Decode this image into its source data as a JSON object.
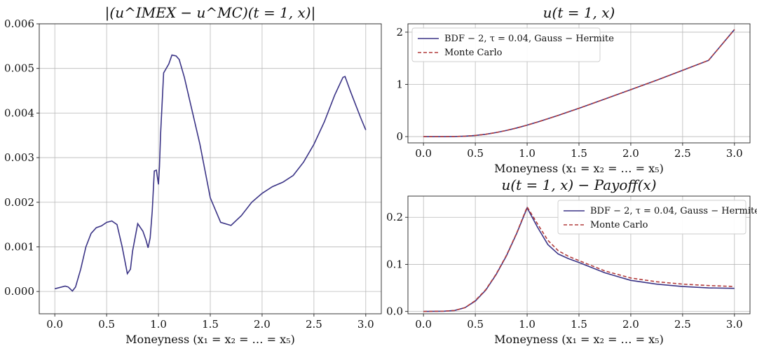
{
  "chart_data": [
    {
      "type": "line",
      "title": "|(u^IMEX − u^MC)(t = 1, x)|",
      "xlabel": "Moneyness (x₁ = x₂ = … = x₅)",
      "ylabel": "",
      "xlim": [
        -0.15,
        3.15
      ],
      "ylim": [
        -0.0005,
        0.006
      ],
      "x_ticks": [
        "0.0",
        "0.5",
        "1.0",
        "1.5",
        "2.0",
        "2.5",
        "3.0"
      ],
      "y_ticks": [
        "0.000",
        "0.001",
        "0.002",
        "0.003",
        "0.004",
        "0.005",
        "0.006"
      ],
      "grid": true,
      "series": [
        {
          "name": "",
          "color": "#3b3486",
          "dash": "",
          "x": [
            0.0,
            0.1,
            0.13,
            0.17,
            0.2,
            0.25,
            0.3,
            0.35,
            0.4,
            0.45,
            0.5,
            0.55,
            0.6,
            0.65,
            0.7,
            0.73,
            0.75,
            0.8,
            0.85,
            0.88,
            0.9,
            0.92,
            0.94,
            0.96,
            0.98,
            1.0,
            1.01,
            1.02,
            1.05,
            1.1,
            1.13,
            1.17,
            1.2,
            1.25,
            1.3,
            1.4,
            1.5,
            1.6,
            1.7,
            1.8,
            1.9,
            2.0,
            2.1,
            2.2,
            2.3,
            2.4,
            2.5,
            2.6,
            2.7,
            2.78,
            2.8,
            2.85,
            2.9,
            2.95,
            3.0
          ],
          "y": [
            6e-05,
            0.00012,
            0.0001,
            1e-05,
            0.0001,
            0.0005,
            0.001,
            0.0013,
            0.00143,
            0.00147,
            0.00155,
            0.00158,
            0.0015,
            0.001,
            0.0004,
            0.0005,
            0.0009,
            0.00152,
            0.00135,
            0.00115,
            0.00098,
            0.0012,
            0.0018,
            0.0027,
            0.00272,
            0.0024,
            0.0028,
            0.0035,
            0.0049,
            0.0051,
            0.0053,
            0.00528,
            0.0052,
            0.0048,
            0.0043,
            0.0033,
            0.0021,
            0.00155,
            0.00148,
            0.0017,
            0.002,
            0.0022,
            0.00235,
            0.00245,
            0.0026,
            0.0029,
            0.0033,
            0.0038,
            0.0044,
            0.0048,
            0.00482,
            0.0045,
            0.0042,
            0.0039,
            0.00362
          ]
        }
      ]
    },
    {
      "type": "line",
      "title": "u(t = 1, x)",
      "xlabel": "Moneyness (x₁ = x₂ = … = x₅)",
      "ylabel": "",
      "xlim": [
        -0.15,
        3.15
      ],
      "ylim": [
        -0.12,
        2.16
      ],
      "x_ticks": [
        "0.0",
        "0.5",
        "1.0",
        "1.5",
        "2.0",
        "2.5",
        "3.0"
      ],
      "y_ticks": [
        "0",
        "1",
        "2"
      ],
      "grid": true,
      "legend": "top-left",
      "series": [
        {
          "name": "BDF − 2, τ = 0.04, Gauss − Hermite",
          "color": "#3b3486",
          "dash": "",
          "x": [
            0.0,
            0.2,
            0.3,
            0.4,
            0.5,
            0.6,
            0.7,
            0.8,
            0.9,
            1.0,
            1.1,
            1.2,
            1.3,
            1.4,
            1.5,
            1.75,
            2.0,
            2.25,
            2.5,
            2.75,
            3.0
          ],
          "y": [
            0.0,
            0.0,
            0.002,
            0.008,
            0.022,
            0.045,
            0.078,
            0.118,
            0.166,
            0.22,
            0.279,
            0.342,
            0.407,
            0.475,
            0.543,
            0.72,
            0.9,
            1.08,
            1.27,
            1.46,
            2.05
          ]
        },
        {
          "name": "Monte Carlo",
          "color": "#b23b3b",
          "dash": "5,3",
          "x": [
            0.0,
            0.2,
            0.3,
            0.4,
            0.5,
            0.6,
            0.7,
            0.8,
            0.9,
            1.0,
            1.1,
            1.2,
            1.3,
            1.4,
            1.5,
            1.75,
            2.0,
            2.25,
            2.5,
            2.75,
            3.0
          ],
          "y": [
            0.0,
            0.0,
            0.002,
            0.008,
            0.022,
            0.045,
            0.078,
            0.118,
            0.166,
            0.22,
            0.279,
            0.342,
            0.407,
            0.475,
            0.543,
            0.72,
            0.9,
            1.08,
            1.27,
            1.46,
            2.05
          ]
        }
      ]
    },
    {
      "type": "line",
      "title": "u(t = 1, x) − Payoff(x)",
      "xlabel": "Moneyness (x₁ = x₂ = … = x₅)",
      "ylabel": "",
      "xlim": [
        -0.15,
        3.15
      ],
      "ylim": [
        -0.005,
        0.245
      ],
      "x_ticks": [
        "0.0",
        "0.5",
        "1.0",
        "1.5",
        "2.0",
        "2.5",
        "3.0"
      ],
      "y_ticks": [
        "0.0",
        "0.1",
        "0.2"
      ],
      "grid": true,
      "legend": "top-right",
      "series": [
        {
          "name": "BDF − 2, τ = 0.04, Gauss − Hermite",
          "color": "#3b3486",
          "dash": "",
          "x": [
            0.0,
            0.2,
            0.3,
            0.4,
            0.5,
            0.6,
            0.7,
            0.8,
            0.9,
            1.0,
            1.1,
            1.2,
            1.3,
            1.4,
            1.5,
            1.75,
            2.0,
            2.25,
            2.5,
            2.75,
            3.0
          ],
          "y": [
            0.0,
            0.0005,
            0.002,
            0.008,
            0.022,
            0.045,
            0.078,
            0.118,
            0.166,
            0.22,
            0.179,
            0.142,
            0.122,
            0.112,
            0.104,
            0.082,
            0.066,
            0.058,
            0.053,
            0.05,
            0.049
          ]
        },
        {
          "name": "Monte Carlo",
          "color": "#b23b3b",
          "dash": "5,3",
          "x": [
            0.0,
            0.2,
            0.3,
            0.4,
            0.5,
            0.6,
            0.7,
            0.8,
            0.9,
            1.0,
            1.1,
            1.2,
            1.3,
            1.4,
            1.5,
            1.75,
            2.0,
            2.25,
            2.5,
            2.75,
            3.0
          ],
          "y": [
            0.0,
            0.0005,
            0.002,
            0.008,
            0.023,
            0.046,
            0.079,
            0.119,
            0.167,
            0.222,
            0.186,
            0.151,
            0.129,
            0.117,
            0.108,
            0.086,
            0.071,
            0.063,
            0.058,
            0.055,
            0.053
          ]
        }
      ]
    }
  ]
}
